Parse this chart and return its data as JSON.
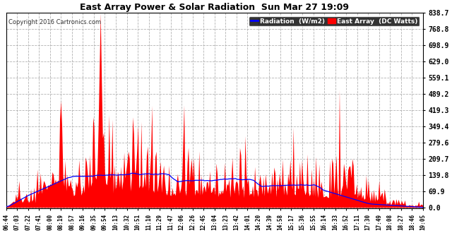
{
  "title": "East Array Power & Solar Radiation  Sun Mar 27 19:09",
  "copyright": "Copyright 2016 Cartronics.com",
  "legend_radiation": "Radiation  (W/m2)",
  "legend_east": "East Array  (DC Watts)",
  "yticks": [
    0.0,
    69.9,
    139.8,
    209.7,
    279.6,
    349.4,
    419.3,
    489.2,
    559.1,
    629.0,
    698.9,
    768.8,
    838.7
  ],
  "ymax": 838.7,
  "bg_color": "#ffffff",
  "plot_bg_color": "#ffffff",
  "grid_color": "#aaaaaa",
  "fill_color": "#ff0000",
  "line_color": "#0000ff",
  "title_color": "#000000",
  "copyright_color": "#555555",
  "xtick_labels": [
    "06:44",
    "07:03",
    "07:22",
    "07:41",
    "08:00",
    "08:19",
    "08:57",
    "09:16",
    "09:35",
    "09:54",
    "10:13",
    "10:32",
    "10:51",
    "11:10",
    "11:29",
    "11:47",
    "12:06",
    "12:26",
    "12:45",
    "13:04",
    "13:23",
    "13:42",
    "14:01",
    "14:20",
    "14:39",
    "14:58",
    "15:17",
    "15:36",
    "15:55",
    "16:14",
    "16:33",
    "16:52",
    "17:11",
    "17:30",
    "17:49",
    "18:08",
    "18:27",
    "18:46",
    "19:05"
  ]
}
